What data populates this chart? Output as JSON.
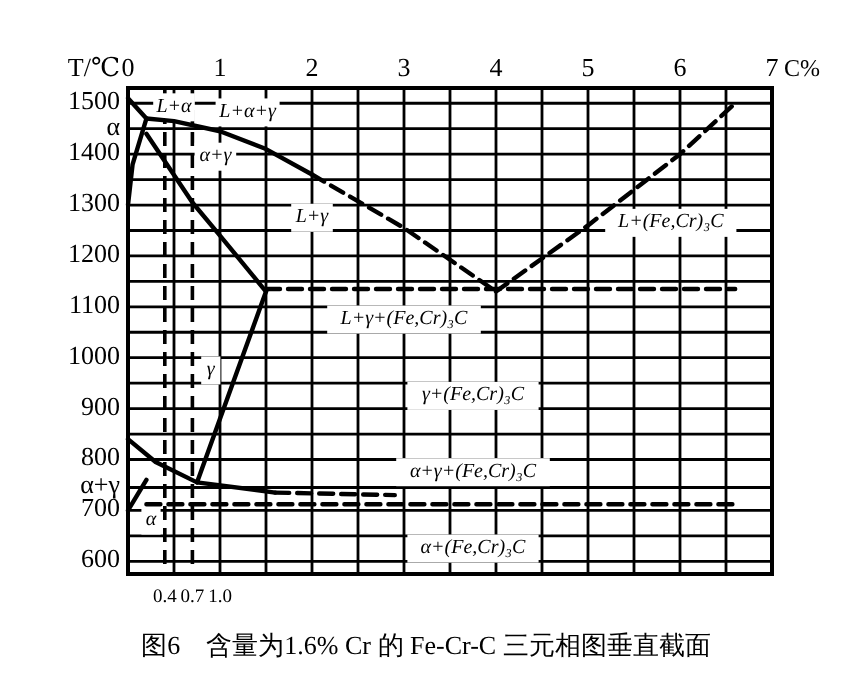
{
  "chart_data": {
    "type": "line",
    "title": "图6　含量为1.6% Cr 的 Fe-Cr-C 三元相图垂直截面",
    "ylabel": "T/℃",
    "x2label": "C%",
    "xlim": [
      0,
      7
    ],
    "xticks": [
      0.4,
      0.7,
      {
        "value": 1.0,
        "label": "1.0"
      }
    ],
    "x2lim": [
      0,
      7
    ],
    "x2ticks": [
      0,
      {
        "value": 0.5,
        "label": null
      },
      1,
      {
        "value": 1.5,
        "label": null
      },
      2,
      {
        "value": 2.5,
        "label": null
      },
      3,
      {
        "value": 3.5,
        "label": null
      },
      4,
      {
        "value": 4.5,
        "label": null
      },
      5,
      {
        "value": 5.5,
        "label": null
      },
      6,
      {
        "value": 6.5,
        "label": null
      },
      7
    ],
    "ylim": [
      575,
      1530
    ],
    "yticks": [
      600,
      {
        "value": 650,
        "label": null
      },
      700,
      {
        "value": 745,
        "label": "α+γ"
      },
      800,
      {
        "value": 850,
        "label": null
      },
      900,
      {
        "value": 950,
        "label": null
      },
      1000,
      {
        "value": 1050,
        "label": null
      },
      1100,
      {
        "value": 1150,
        "label": null
      },
      1200,
      {
        "value": 1250,
        "label": null
      },
      1300,
      {
        "value": 1350,
        "label": null
      },
      1400,
      {
        "value": 1450,
        "label": "α"
      },
      1500
    ],
    "grid": true,
    "marker": "none",
    "ref_lines": [
      {
        "axis": "x",
        "value": 0.4,
        "line_style": "dashed"
      },
      {
        "axis": "x",
        "value": 0.7,
        "line_style": "dashed"
      }
    ],
    "series": [
      {
        "color": "#000000",
        "line_style": "solid",
        "x": [
          0.2,
          0.5,
          1.0,
          1.5,
          2.0
        ],
        "values": [
          1470,
          1465,
          1445,
          1410,
          1360
        ]
      },
      {
        "color": "#000000",
        "line_style": "dashed",
        "x": [
          2.0,
          3.0,
          4.0
        ],
        "values": [
          1360,
          1255,
          1130
        ]
      },
      {
        "color": "#000000",
        "line_style": "dashed",
        "x": [
          4.0,
          5.0,
          6.0,
          6.6
        ],
        "values": [
          1130,
          1260,
          1400,
          1500
        ]
      },
      {
        "color": "#000000",
        "line_style": "dashed",
        "x": [
          1.5,
          6.6
        ],
        "values": [
          1135,
          1135
        ]
      },
      {
        "color": "#000000",
        "line_style": "solid",
        "x": [
          0.2,
          0.7,
          1.0,
          1.5
        ],
        "values": [
          1440,
          1305,
          1240,
          1130
        ]
      },
      {
        "color": "#000000",
        "line_style": "solid",
        "x": [
          1.5,
          1.1,
          0.75
        ],
        "values": [
          1130,
          930,
          755
        ]
      },
      {
        "color": "#000000",
        "line_style": "solid",
        "x": [
          0,
          0.3,
          0.75,
          1.6
        ],
        "values": [
          840,
          795,
          755,
          735
        ]
      },
      {
        "color": "#000000",
        "line_style": "dashed",
        "x": [
          1.6,
          2.9
        ],
        "values": [
          735,
          730
        ]
      },
      {
        "color": "#000000",
        "line_style": "dashed",
        "x": [
          0.2,
          6.6
        ],
        "values": [
          712,
          712
        ]
      },
      {
        "color": "#000000",
        "line_style": "solid",
        "x": [
          0,
          0.05,
          0.15,
          0.2
        ],
        "values": [
          1300,
          1380,
          1440,
          1470
        ]
      },
      {
        "color": "#000000",
        "line_style": "solid",
        "x": [
          0,
          0.2
        ],
        "values": [
          1510,
          1470
        ]
      },
      {
        "color": "#000000",
        "line_style": "solid",
        "x": [
          0,
          0.2
        ],
        "values": [
          700,
          760
        ]
      }
    ],
    "annotations": [
      "L+α",
      "L+α+γ",
      "α+γ",
      "L+γ",
      "L+(Fe,Cr)₃C",
      "L+γ+(Fe,Cr)₃C",
      "γ",
      "γ+(Fe,Cr)₃C",
      "α",
      "α+γ+(Fe,Cr)₃C",
      "α+(Fe,Cr)₃C"
    ]
  }
}
